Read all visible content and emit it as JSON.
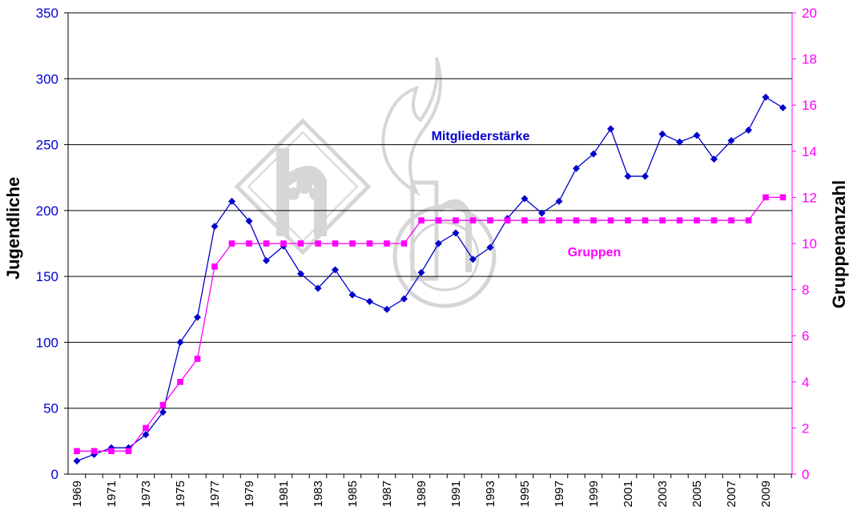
{
  "chart_data": {
    "type": "line",
    "ylabel": "Jugendliche",
    "y2label": "Gruppenanzahl",
    "ylim": [
      0,
      350
    ],
    "y2lim": [
      0,
      20
    ],
    "yticks": [
      "0",
      "50",
      "100",
      "150",
      "200",
      "250",
      "300",
      "350"
    ],
    "y2ticks": [
      "0",
      "2",
      "4",
      "6",
      "8",
      "10",
      "12",
      "14",
      "16",
      "18",
      "20"
    ],
    "xticks": [
      "1969",
      "1971",
      "1973",
      "1975",
      "1977",
      "1979",
      "1981",
      "1983",
      "1985",
      "1987",
      "1989",
      "1991",
      "1993",
      "1995",
      "1997",
      "1999",
      "2001",
      "2003",
      "2005",
      "2007",
      "2009"
    ],
    "grid": true,
    "x": [
      1969,
      1970,
      1971,
      1972,
      1973,
      1974,
      1975,
      1976,
      1977,
      1978,
      1979,
      1980,
      1981,
      1982,
      1983,
      1984,
      1985,
      1986,
      1987,
      1988,
      1989,
      1990,
      1991,
      1992,
      1993,
      1994,
      1995,
      1996,
      1997,
      1998,
      1999,
      2000,
      2001,
      2002,
      2003,
      2004,
      2005,
      2006,
      2007,
      2008,
      2009,
      2010
    ],
    "series": [
      {
        "name": "Mitgliederstärke",
        "axis": "left",
        "color": "#0000cc",
        "marker": "diamond",
        "values": [
          10,
          15,
          20,
          20,
          30,
          47,
          100,
          119,
          188,
          207,
          192,
          162,
          173,
          152,
          141,
          155,
          136,
          131,
          125,
          133,
          153,
          175,
          183,
          163,
          172,
          194,
          209,
          198,
          207,
          232,
          243,
          262,
          226,
          226,
          258,
          252,
          257,
          239,
          253,
          261,
          286,
          278
        ]
      },
      {
        "name": "Gruppen",
        "axis": "right",
        "color": "#ff00ff",
        "marker": "square",
        "values": [
          1,
          1,
          1,
          1,
          2,
          3,
          4,
          5,
          9,
          10,
          10,
          10,
          10,
          10,
          10,
          10,
          10,
          10,
          10,
          10,
          11,
          11,
          11,
          11,
          11,
          11,
          11,
          11,
          11,
          11,
          11,
          11,
          11,
          11,
          11,
          11,
          11,
          11,
          11,
          11,
          12,
          12
        ]
      }
    ]
  }
}
